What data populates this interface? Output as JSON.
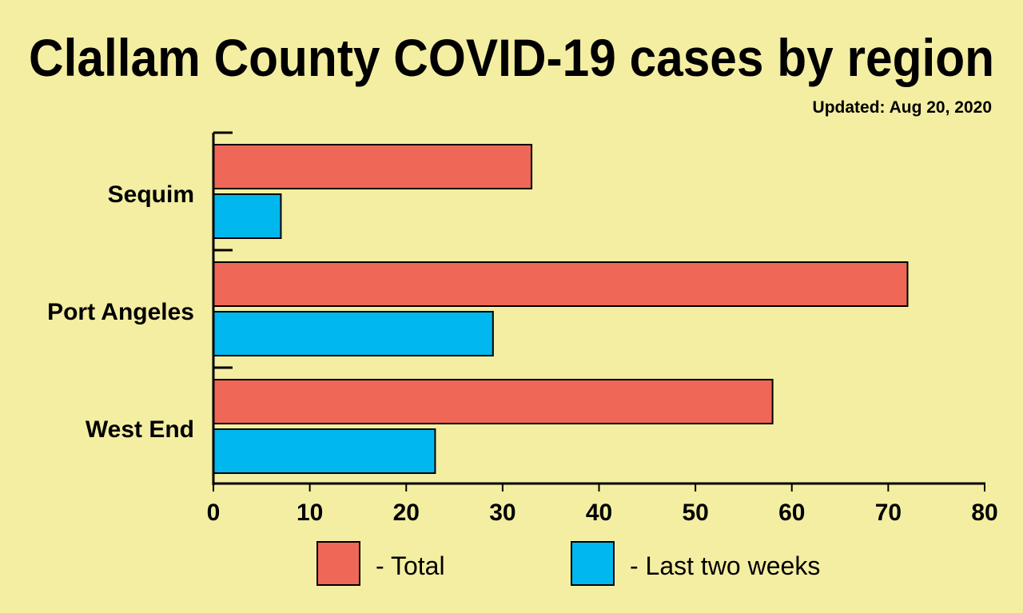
{
  "chart_data": {
    "type": "bar",
    "orientation": "horizontal",
    "title": "Clallam County COVID-19 cases by region",
    "subtitle": "Updated: Aug 20, 2020",
    "xlabel": "",
    "ylabel": "",
    "categories": [
      "Sequim",
      "Port Angeles",
      "West End"
    ],
    "series": [
      {
        "name": "- Total",
        "values": [
          33,
          72,
          58
        ],
        "color": "#ef6757"
      },
      {
        "name": "- Last two weeks",
        "values": [
          7,
          29,
          23
        ],
        "color": "#00b8ee"
      }
    ],
    "xlim": [
      0,
      80
    ],
    "xticks": [
      "0",
      "10",
      "20",
      "30",
      "40",
      "50",
      "60",
      "70",
      "80"
    ],
    "grid": false,
    "legend": "bottom",
    "background": "#f4eea2"
  }
}
